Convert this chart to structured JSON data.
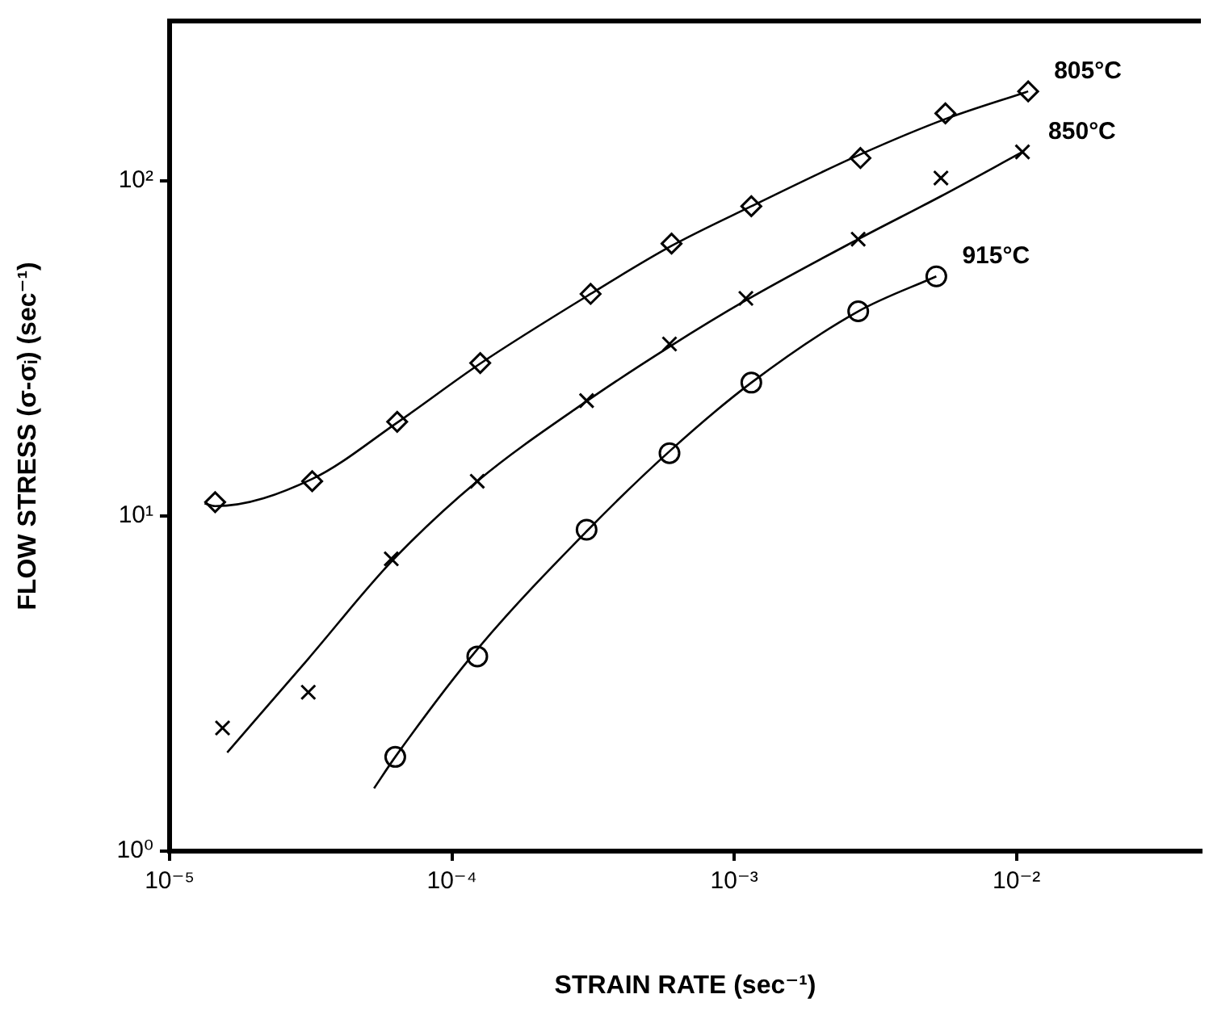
{
  "chart_data": {
    "type": "scatter",
    "xlabel": "STRAIN RATE (sec⁻¹)",
    "ylabel": "FLOW STRESS (σ-σᵢ) (sec⁻¹)",
    "log": "xy",
    "grid": false,
    "legend": false,
    "xlim": [
      1e-05,
      0.045
    ],
    "ylim": [
      1,
      300
    ],
    "xticks": [
      {
        "value": 1e-05,
        "label": "10⁻⁵"
      },
      {
        "value": 0.0001,
        "label": "10⁻⁴"
      },
      {
        "value": 0.001,
        "label": "10⁻³"
      },
      {
        "value": 0.01,
        "label": "10⁻²"
      }
    ],
    "yticks": [
      {
        "value": 1,
        "label": "10⁰"
      },
      {
        "value": 10,
        "label": "10¹"
      },
      {
        "value": 100,
        "label": "10²"
      }
    ],
    "series": [
      {
        "name": "805°C",
        "marker": "diamond",
        "color": "#000000",
        "x": [
          1.45e-05,
          3.2e-05,
          6.4e-05,
          0.000126,
          0.00031,
          0.0006,
          0.00115,
          0.0028,
          0.0056,
          0.011
        ],
        "values": [
          11,
          12.7,
          19.1,
          28.6,
          46,
          65,
          84,
          117,
          159,
          185
        ]
      },
      {
        "name": "850°C",
        "marker": "cross",
        "color": "#000000",
        "x": [
          1.54e-05,
          3.1e-05,
          6.1e-05,
          0.000123,
          0.0003,
          0.00059,
          0.0011,
          0.00275,
          0.0054,
          0.0105
        ],
        "values": [
          2.33,
          2.98,
          7.45,
          12.7,
          22.1,
          32.6,
          44.6,
          67,
          102,
          122
        ]
      },
      {
        "name": "915°C",
        "marker": "circle",
        "color": "#000000",
        "x": [
          6.3e-05,
          0.000123,
          0.0003,
          0.00059,
          0.00115,
          0.00275,
          0.0052
        ],
        "values": [
          1.91,
          3.81,
          9.1,
          15.4,
          25,
          40.8,
          51.9
        ]
      },
      {
        "type": "line",
        "marker": "none",
        "color": "#000000",
        "x": [
          1.33e-05,
          1.45e-05,
          3.2e-05,
          6.4e-05,
          0.000126,
          0.00031,
          0.0006,
          0.00115,
          0.0028,
          0.0056,
          0.011
        ],
        "values": [
          10.9,
          10.7,
          12.9,
          19,
          28.5,
          46,
          64,
          84,
          120,
          153,
          185
        ]
      },
      {
        "type": "line",
        "marker": "none",
        "color": "#000000",
        "x": [
          1.6e-05,
          3.1e-05,
          6.1e-05,
          0.000123,
          0.0003,
          0.00059,
          0.0011,
          0.00275,
          0.0054,
          0.0105
        ],
        "values": [
          1.97,
          3.75,
          7.3,
          12.7,
          22,
          32,
          44,
          67,
          90,
          122
        ]
      },
      {
        "type": "line",
        "marker": "none",
        "color": "#000000",
        "x": [
          5.3e-05,
          6.3e-05,
          0.000123,
          0.0003,
          0.00059,
          0.00115,
          0.00275,
          0.0052
        ],
        "values": [
          1.54,
          1.91,
          4,
          9,
          15.6,
          25,
          40.8,
          51.9
        ]
      }
    ]
  }
}
